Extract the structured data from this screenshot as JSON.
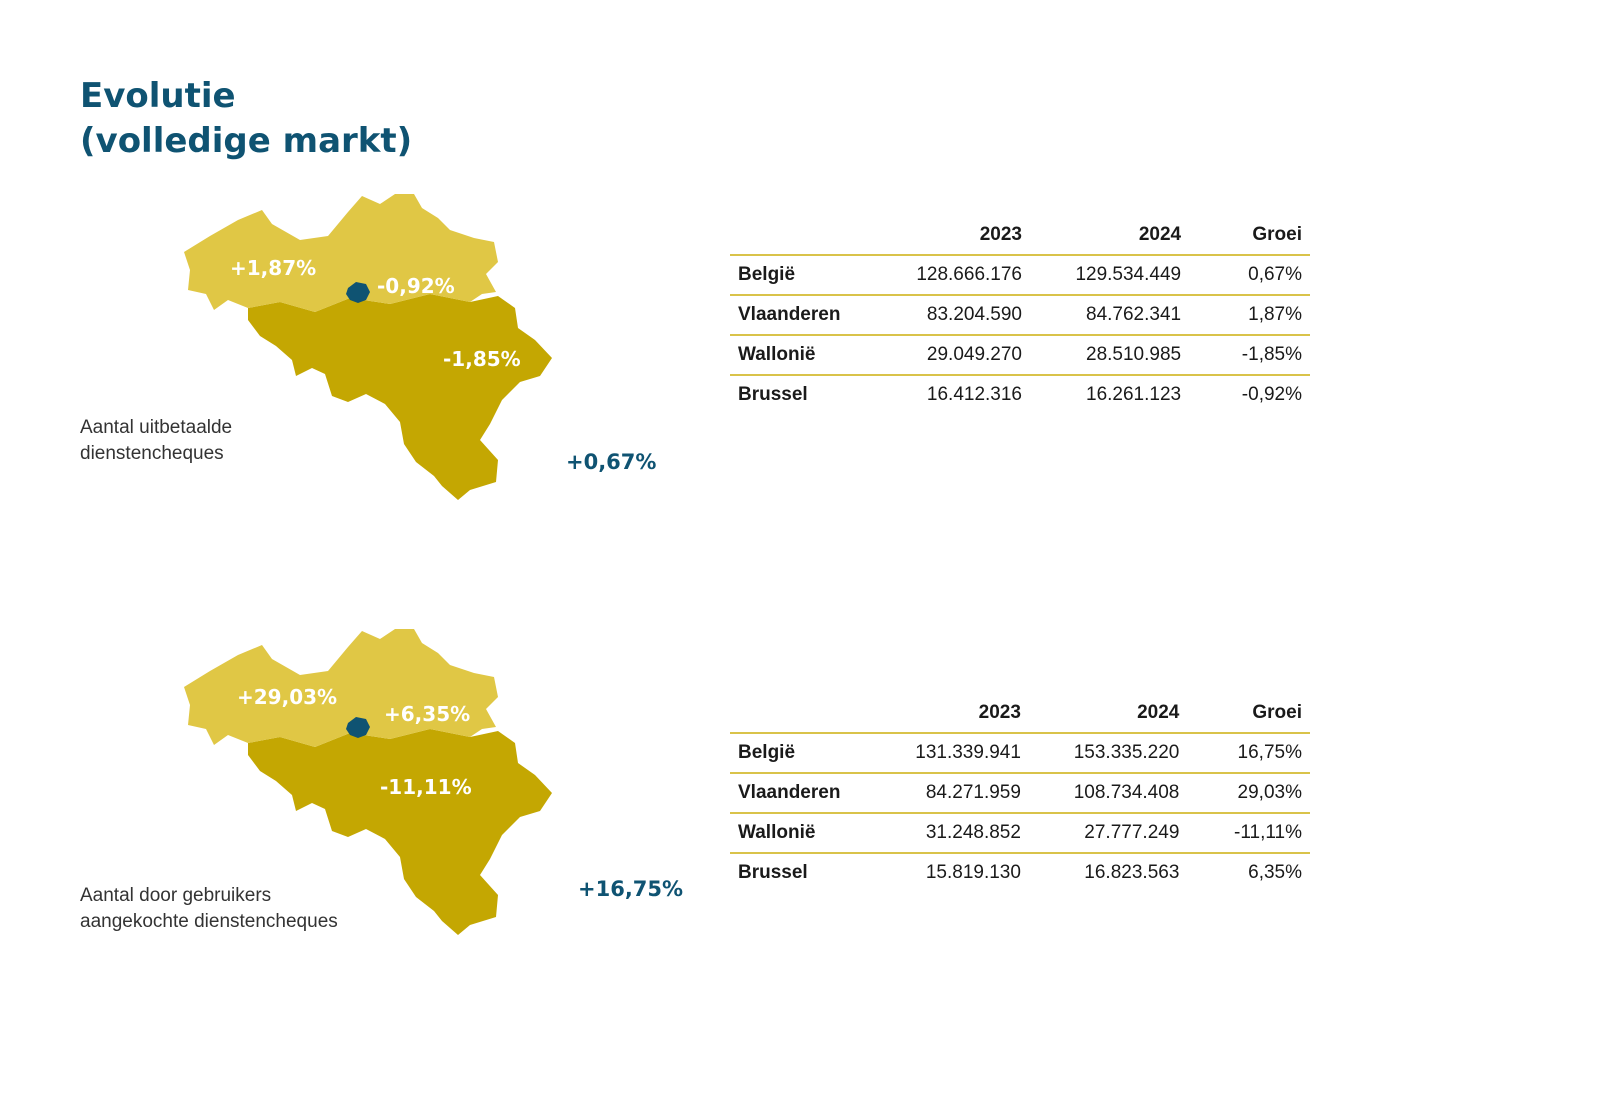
{
  "title": {
    "line1": "Evolutie",
    "line2": "(volledige markt)"
  },
  "colors": {
    "flanders": "#e0c745",
    "wallonia": "#c4a702",
    "brussels": "#0f5372",
    "accent": "#0f5372",
    "rule": "#d9c34a"
  },
  "sections": [
    {
      "caption": {
        "line1": "Aantal uitbetaalde",
        "line2": "dienstencheques"
      },
      "map": {
        "flanders": "+1,87%",
        "brussels": "-0,92%",
        "wallonia": "-1,85%"
      },
      "total": "+0,67%",
      "table": {
        "headers": [
          "",
          "2023",
          "2024",
          "Groei"
        ],
        "rows": [
          [
            "België",
            "128.666.176",
            "129.534.449",
            "0,67%"
          ],
          [
            "Vlaanderen",
            "83.204.590",
            "84.762.341",
            "1,87%"
          ],
          [
            "Wallonië",
            "29.049.270",
            "28.510.985",
            "-1,85%"
          ],
          [
            "Brussel",
            "16.412.316",
            "16.261.123",
            "-0,92%"
          ]
        ]
      }
    },
    {
      "caption": {
        "line1": "Aantal door gebruikers",
        "line2": "aangekochte dienstencheques"
      },
      "map": {
        "flanders": "+29,03%",
        "brussels": "+6,35%",
        "wallonia": "-11,11%"
      },
      "total": "+16,75%",
      "table": {
        "headers": [
          "",
          "2023",
          "2024",
          "Groei"
        ],
        "rows": [
          [
            "België",
            "131.339.941",
            "153.335.220",
            "16,75%"
          ],
          [
            "Vlaanderen",
            "84.271.959",
            "108.734.408",
            "29,03%"
          ],
          [
            "Wallonië",
            "31.248.852",
            "27.777.249",
            "-11,11%"
          ],
          [
            "Brussel",
            "15.819.130",
            "16.823.563",
            "6,35%"
          ]
        ]
      }
    }
  ]
}
